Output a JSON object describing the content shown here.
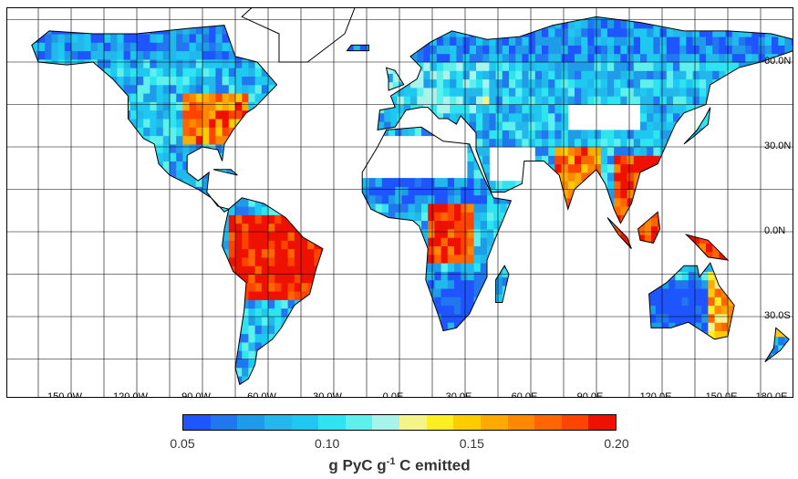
{
  "map": {
    "longitude_labels": [
      "150.0W",
      "120.0W",
      "90.0W",
      "60.0W",
      "30.0W",
      "0.0E",
      "30.0E",
      "60.0E",
      "90.0E",
      "120.0E",
      "150.0E",
      "180.0E"
    ],
    "latitude_labels": [
      "60.0N",
      "30.0N",
      "0.0N",
      "30.0S"
    ],
    "grid": true,
    "projection": "equirectangular"
  },
  "colorbar": {
    "colors": [
      "#1f55ff",
      "#2277f0",
      "#1e9ce8",
      "#22b8ec",
      "#1ec8f0",
      "#2ee4f0",
      "#5ef0ec",
      "#a8f4ec",
      "#f4f48a",
      "#ffee22",
      "#ffcc00",
      "#ffaa00",
      "#ff8800",
      "#ff6600",
      "#ff4400",
      "#ee1100"
    ],
    "ticks": [
      "0.05",
      "0.10",
      "0.15",
      "0.20"
    ],
    "title_main": "g PyC g",
    "title_sup": "-1",
    "title_rest": " C emitted"
  },
  "chart_data": {
    "type": "heatmap",
    "variable": "g PyC g-1 C emitted",
    "range": [
      0.05,
      0.2
    ],
    "regions": [
      {
        "name": "Amazon basin",
        "level": 0.2
      },
      {
        "name": "Central Africa",
        "level": 0.19
      },
      {
        "name": "Southeast Asia",
        "level": 0.19
      },
      {
        "name": "Eastern United States",
        "level": 0.17
      },
      {
        "name": "India",
        "level": 0.17
      },
      {
        "name": "Eastern Australia",
        "level": 0.15
      },
      {
        "name": "Europe",
        "level": 0.1
      },
      {
        "name": "Boreal Eurasia",
        "level": 0.07
      },
      {
        "name": "Sahel",
        "level": 0.06
      },
      {
        "name": "Southern Africa",
        "level": 0.06
      },
      {
        "name": "Interior Australia",
        "level": 0.05
      }
    ]
  }
}
